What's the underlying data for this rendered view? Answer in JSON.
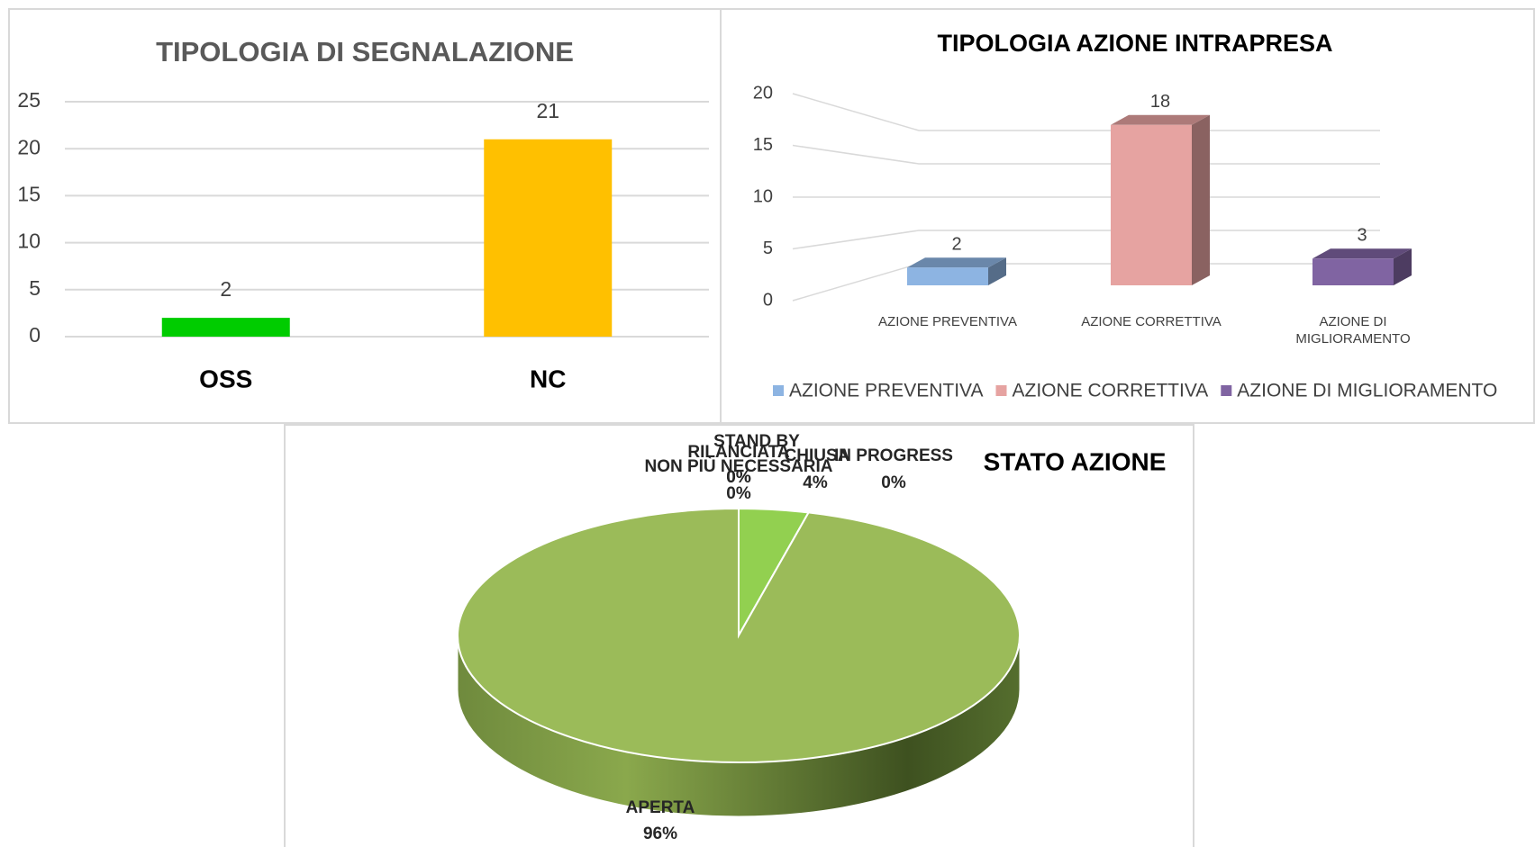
{
  "chart_data": [
    {
      "type": "bar",
      "title": "TIPOLOGIA DI SEGNALAZIONE",
      "categories": [
        "OSS",
        "NC"
      ],
      "values": [
        2,
        21
      ],
      "colors": [
        "#00cc00",
        "#ffc000"
      ],
      "ylim": [
        0,
        25
      ],
      "yticks": [
        0,
        5,
        10,
        15,
        20,
        25
      ],
      "grid": true
    },
    {
      "type": "bar3d",
      "title": "TIPOLOGIA AZIONE INTRAPRESA",
      "categories": [
        "AZIONE PREVENTIVA",
        "AZIONE CORRETTIVA",
        "AZIONE DI MIGLIORAMENTO"
      ],
      "values": [
        2,
        18,
        3
      ],
      "colors": [
        "#8db4e2",
        "#e6a3a1",
        "#8064a2"
      ],
      "ylim": [
        0,
        20
      ],
      "yticks": [
        0,
        5,
        10,
        15,
        20
      ],
      "grid": true,
      "legend": "bottom"
    },
    {
      "type": "pie3d",
      "title": "STATO AZIONE",
      "categories": [
        "CHIUSA",
        "IN PROGRESS",
        "APERTA",
        "STAND BY",
        "RILANCIATA",
        "NON PIÙ NECESSARIA"
      ],
      "values": [
        4,
        0,
        96,
        0,
        0,
        0
      ],
      "value_labels": [
        "4%",
        "0%",
        "96%",
        "0%",
        "0%",
        "0%"
      ],
      "colors": [
        "#92d050",
        "#953735",
        "#9bbb59",
        "#4f81bd",
        "#f79646",
        "#8064a2"
      ]
    }
  ]
}
